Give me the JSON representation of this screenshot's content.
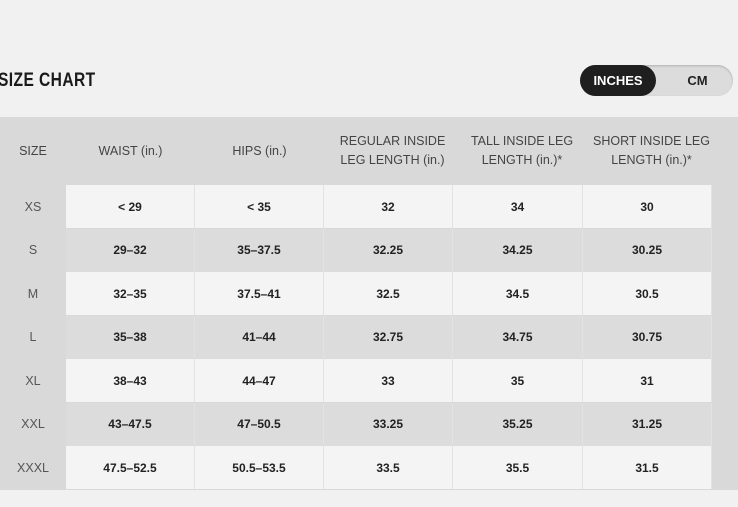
{
  "title": "SIZE CHART",
  "units": {
    "inches": "INCHES",
    "cm": "CM",
    "selected": "INCHES"
  },
  "headers": [
    "SIZE",
    "WAIST (in.)",
    "HIPS (in.)",
    "REGULAR INSIDE LEG LENGTH (in.)",
    "TALL INSIDE LEG LENGTH (in.)*",
    "SHORT INSIDE LEG LENGTH (in.)*"
  ],
  "rows": [
    [
      "XS",
      "< 29",
      "< 35",
      "32",
      "34",
      "30"
    ],
    [
      "S",
      "29–32",
      "35–37.5",
      "32.25",
      "34.25",
      "30.25"
    ],
    [
      "M",
      "32–35",
      "37.5–41",
      "32.5",
      "34.5",
      "30.5"
    ],
    [
      "L",
      "35–38",
      "41–44",
      "32.75",
      "34.75",
      "30.75"
    ],
    [
      "XL",
      "38–43",
      "44–47",
      "33",
      "35",
      "31"
    ],
    [
      "XXL",
      "43–47.5",
      "47–50.5",
      "33.25",
      "35.25",
      "31.25"
    ],
    [
      "XXXL",
      "47.5–52.5",
      "50.5–53.5",
      "33.5",
      "35.5",
      "31.5"
    ]
  ]
}
